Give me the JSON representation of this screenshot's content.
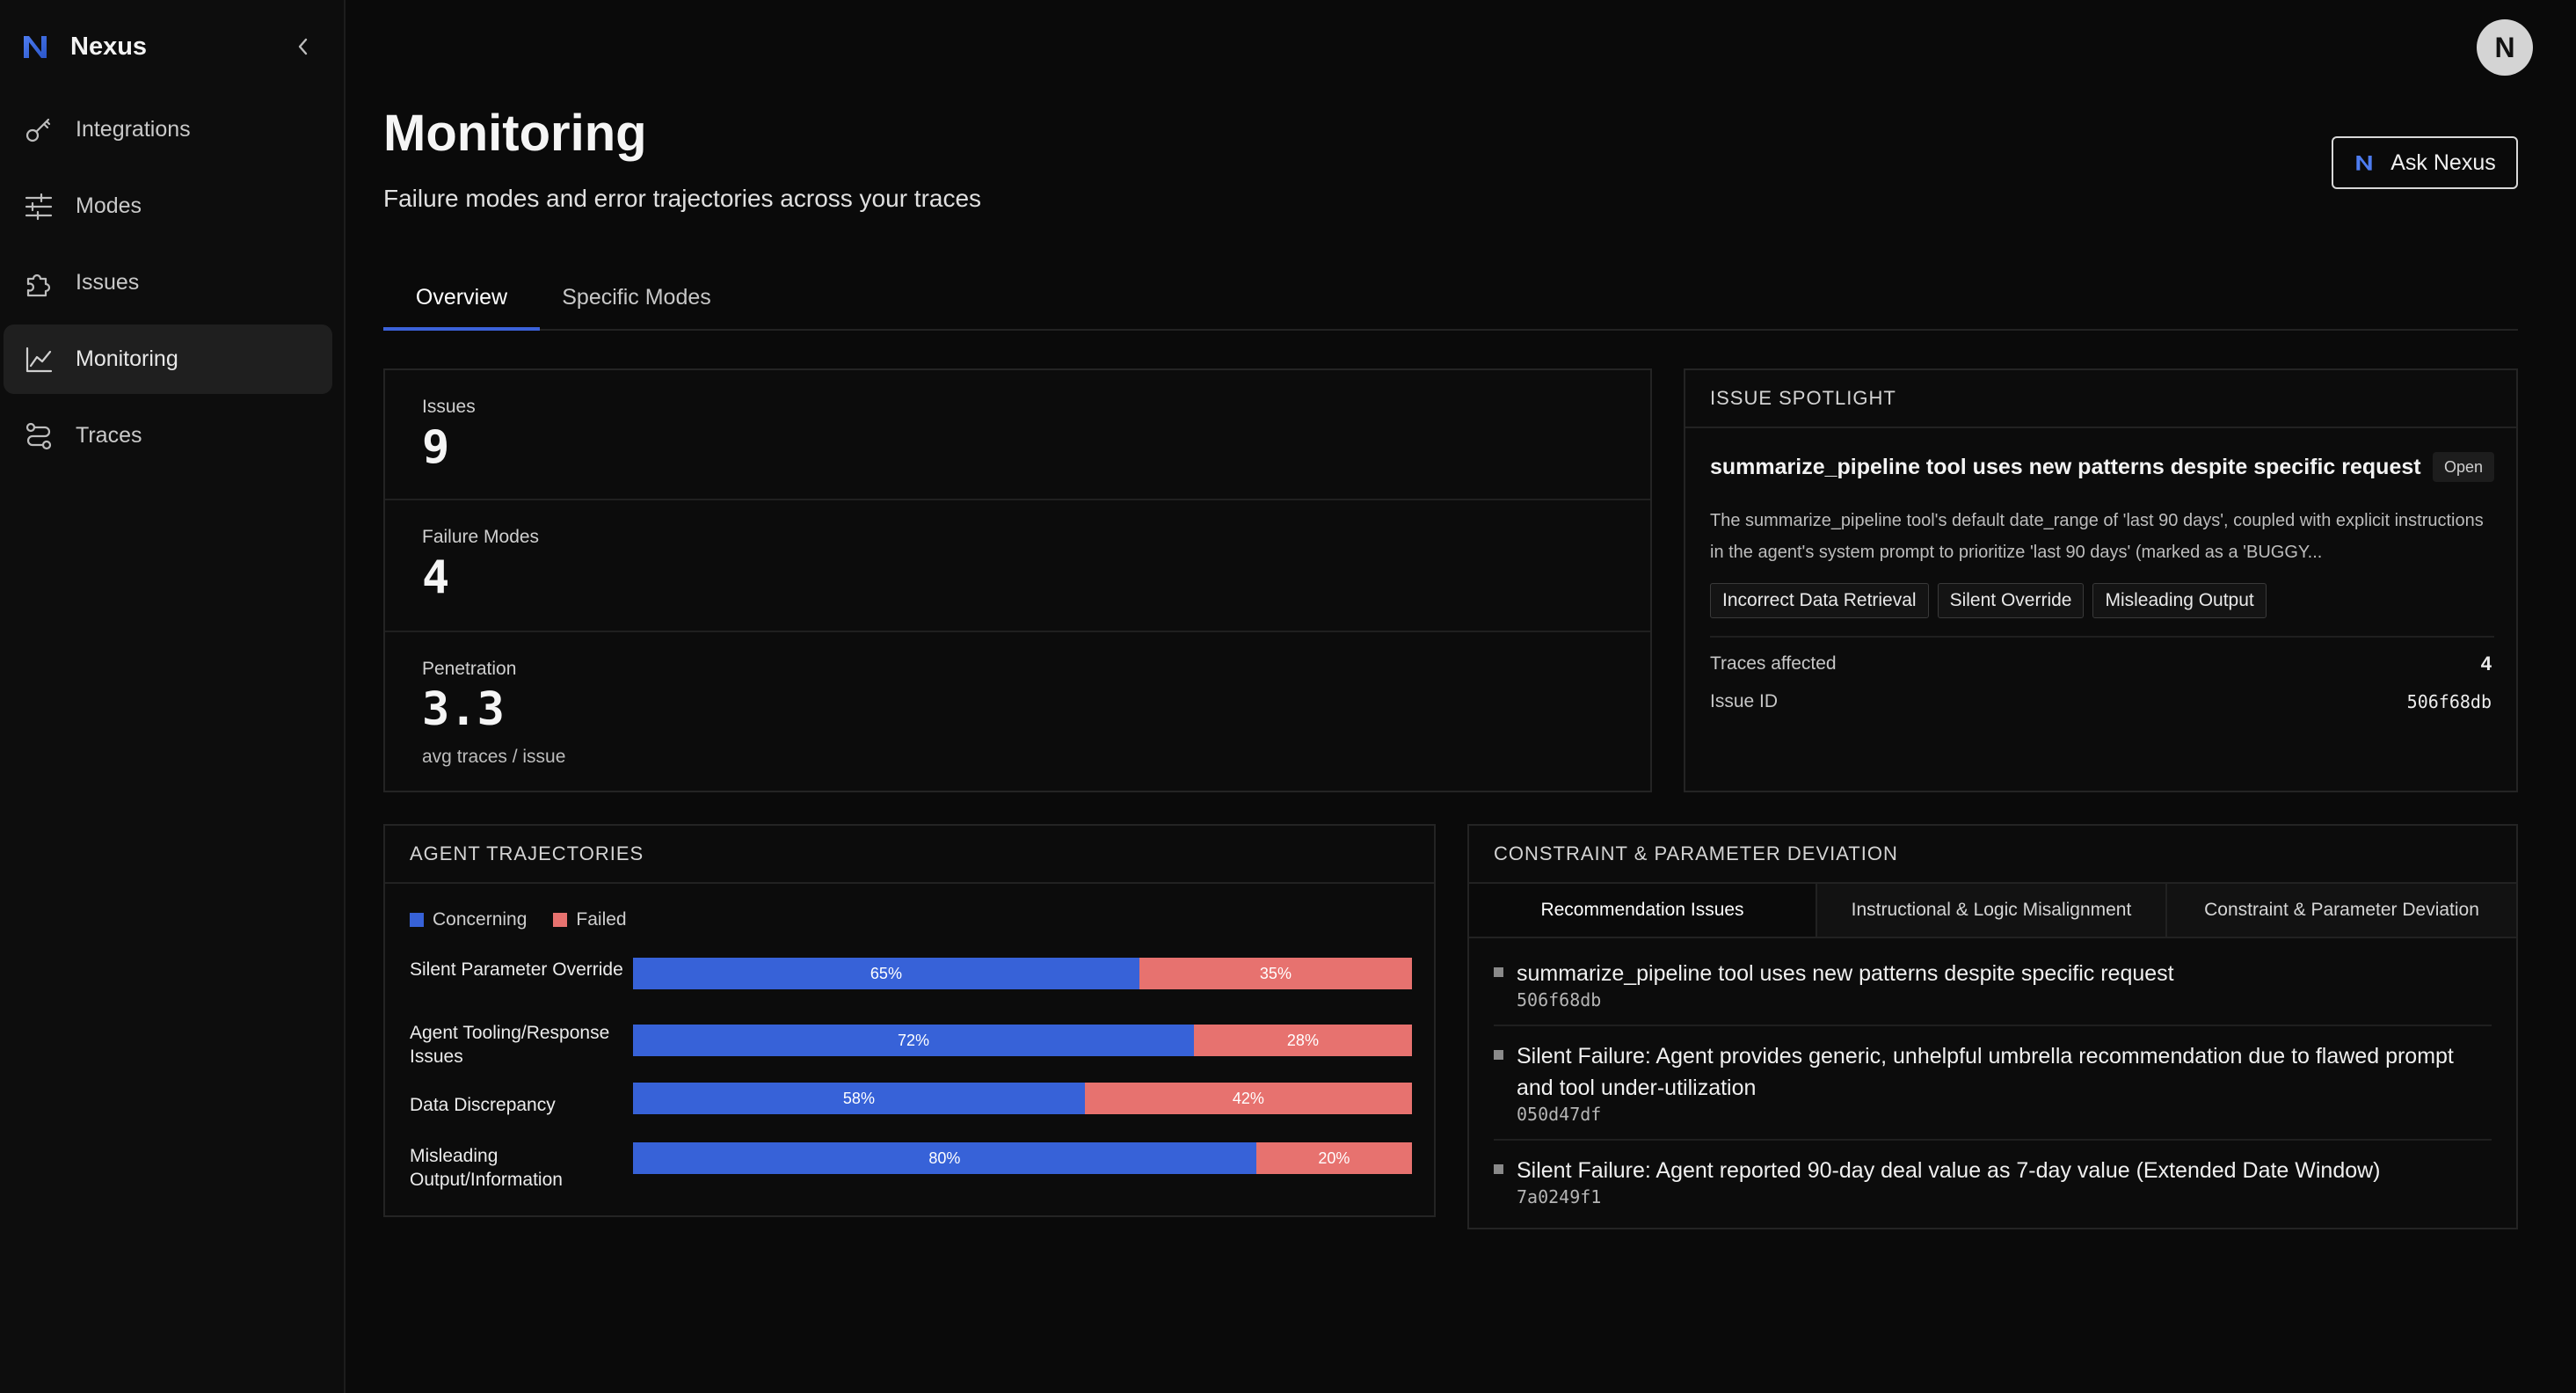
{
  "app": {
    "name": "Nexus",
    "avatar_initial": "N"
  },
  "sidebar": {
    "items": [
      {
        "label": "Integrations",
        "icon": "key-icon"
      },
      {
        "label": "Modes",
        "icon": "sliders-icon"
      },
      {
        "label": "Issues",
        "icon": "puzzle-icon"
      },
      {
        "label": "Monitoring",
        "icon": "chart-line-icon",
        "active": true
      },
      {
        "label": "Traces",
        "icon": "route-icon"
      }
    ]
  },
  "header": {
    "title": "Monitoring",
    "subtitle": "Failure modes and error trajectories across your traces",
    "ask_button": "Ask Nexus"
  },
  "tabs": [
    {
      "label": "Overview",
      "active": true
    },
    {
      "label": "Specific Modes",
      "active": false
    }
  ],
  "stats": {
    "issues": {
      "label": "Issues",
      "value": "9"
    },
    "failure_modes": {
      "label": "Failure Modes",
      "value": "4"
    },
    "penetration": {
      "label": "Penetration",
      "value": "3.3",
      "sub": "avg traces / issue"
    }
  },
  "spotlight": {
    "header": "ISSUE SPOTLIGHT",
    "title": "summarize_pipeline tool uses new patterns despite specific request",
    "status": "Open",
    "description": "The summarize_pipeline tool's default date_range of 'last 90 days', coupled with explicit instructions in the agent's system prompt to prioritize 'last 90 days' (marked as a 'BUGGY...",
    "tags": [
      "Incorrect Data Retrieval",
      "Silent Override",
      "Misleading Output"
    ],
    "traces_affected_label": "Traces affected",
    "traces_affected_value": "4",
    "issue_id_label": "Issue ID",
    "issue_id_value": "506f68db"
  },
  "trajectories": {
    "header": "AGENT TRAJECTORIES",
    "legend": {
      "concerning": "Concerning",
      "failed": "Failed"
    },
    "colors": {
      "concerning": "#3762d8",
      "failed": "#e7726f"
    }
  },
  "chart_data": {
    "type": "bar",
    "stacked": true,
    "orientation": "horizontal",
    "categories": [
      "Silent Parameter Override",
      "Agent Tooling/Response Issues",
      "Data Discrepancy",
      "Misleading Output/Information"
    ],
    "series": [
      {
        "name": "Concerning",
        "values": [
          65,
          72,
          58,
          80
        ],
        "labels": [
          "65%",
          "72%",
          "58%",
          "80%"
        ]
      },
      {
        "name": "Failed",
        "values": [
          35,
          28,
          42,
          20
        ],
        "labels": [
          "35%",
          "28%",
          "42%",
          "20%"
        ]
      }
    ],
    "legend": "top-left",
    "xlim": [
      0,
      100
    ]
  },
  "constraint": {
    "header": "CONSTRAINT & PARAMETER DEVIATION",
    "subtabs": [
      {
        "label": "Recommendation Issues",
        "active": true
      },
      {
        "label": "Instructional & Logic Misalignment",
        "active": false
      },
      {
        "label": "Constraint & Parameter Deviation",
        "active": false
      }
    ],
    "issues": [
      {
        "title": "summarize_pipeline tool uses new patterns despite specific request",
        "id": "506f68db"
      },
      {
        "title": "Silent Failure: Agent provides generic, unhelpful umbrella recommendation due to flawed prompt and tool under-utilization",
        "id": "050d47df"
      },
      {
        "title": "Silent Failure: Agent reported 90-day deal value as 7-day value (Extended Date Window)",
        "id": "7a0249f1"
      }
    ]
  }
}
